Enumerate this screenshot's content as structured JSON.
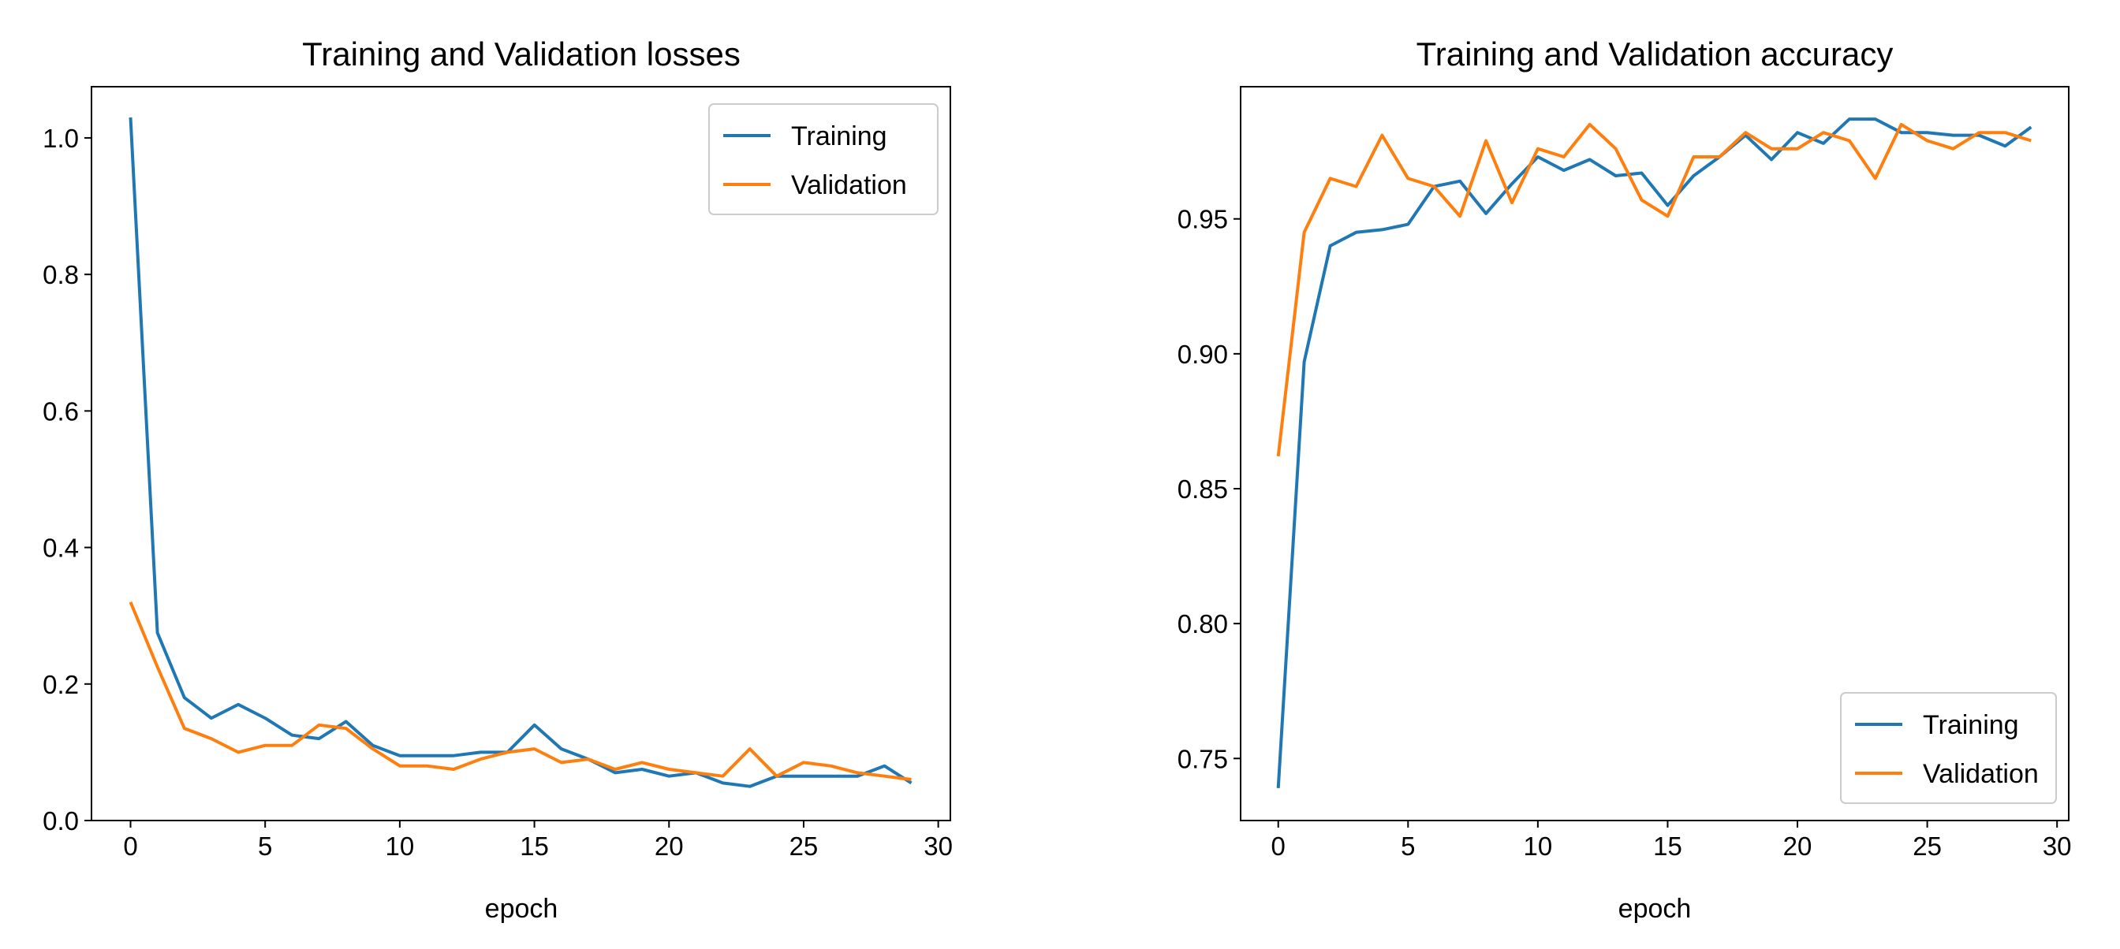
{
  "chart_data": [
    {
      "type": "line",
      "title": "Training and Validation losses",
      "xlabel": "epoch",
      "ylabel": "",
      "xlim": [
        -1.45,
        30.45
      ],
      "ylim": [
        0.0,
        1.075
      ],
      "xticks": [
        0,
        5,
        10,
        15,
        20,
        25,
        30
      ],
      "xtick_labels": [
        "0",
        "5",
        "10",
        "15",
        "20",
        "25",
        "30"
      ],
      "yticks": [
        0.0,
        0.2,
        0.4,
        0.6,
        0.8,
        1.0
      ],
      "ytick_labels": [
        "0.0",
        "0.2",
        "0.4",
        "0.6",
        "0.8",
        "1.0"
      ],
      "legend": "top-right",
      "grid": false,
      "x": [
        0,
        1,
        2,
        3,
        4,
        5,
        6,
        7,
        8,
        9,
        10,
        11,
        12,
        13,
        14,
        15,
        16,
        17,
        18,
        19,
        20,
        21,
        22,
        23,
        24,
        25,
        26,
        27,
        28,
        29
      ],
      "series": [
        {
          "name": "Training",
          "color": "#1f77b4",
          "values": [
            1.03,
            0.275,
            0.18,
            0.15,
            0.17,
            0.15,
            0.125,
            0.12,
            0.145,
            0.11,
            0.095,
            0.095,
            0.095,
            0.1,
            0.1,
            0.14,
            0.105,
            0.09,
            0.07,
            0.075,
            0.065,
            0.07,
            0.055,
            0.05,
            0.065,
            0.065,
            0.065,
            0.065,
            0.08,
            0.055
          ]
        },
        {
          "name": "Validation",
          "color": "#ff7f0e",
          "values": [
            0.32,
            0.225,
            0.135,
            0.12,
            0.1,
            0.11,
            0.11,
            0.14,
            0.135,
            0.105,
            0.08,
            0.08,
            0.075,
            0.09,
            0.1,
            0.105,
            0.085,
            0.09,
            0.075,
            0.085,
            0.075,
            0.07,
            0.065,
            0.105,
            0.065,
            0.085,
            0.08,
            0.07,
            0.065,
            0.06
          ]
        }
      ]
    },
    {
      "type": "line",
      "title": "Training and Validation accuracy",
      "xlabel": "epoch",
      "ylabel": "",
      "xlim": [
        -1.45,
        30.45
      ],
      "ylim": [
        0.727,
        0.999
      ],
      "xticks": [
        0,
        5,
        10,
        15,
        20,
        25,
        30
      ],
      "xtick_labels": [
        "0",
        "5",
        "10",
        "15",
        "20",
        "25",
        "30"
      ],
      "yticks": [
        0.75,
        0.8,
        0.85,
        0.9,
        0.95
      ],
      "ytick_labels": [
        "0.75",
        "0.80",
        "0.85",
        "0.90",
        "0.95"
      ],
      "legend": "bottom-right",
      "grid": false,
      "x": [
        0,
        1,
        2,
        3,
        4,
        5,
        6,
        7,
        8,
        9,
        10,
        11,
        12,
        13,
        14,
        15,
        16,
        17,
        18,
        19,
        20,
        21,
        22,
        23,
        24,
        25,
        26,
        27,
        28,
        29
      ],
      "series": [
        {
          "name": "Training",
          "color": "#1f77b4",
          "values": [
            0.739,
            0.897,
            0.94,
            0.945,
            0.946,
            0.948,
            0.962,
            0.964,
            0.952,
            0.963,
            0.973,
            0.968,
            0.972,
            0.966,
            0.967,
            0.955,
            0.966,
            0.973,
            0.981,
            0.972,
            0.982,
            0.978,
            0.987,
            0.987,
            0.982,
            0.982,
            0.981,
            0.981,
            0.977,
            0.984
          ]
        },
        {
          "name": "Validation",
          "color": "#ff7f0e",
          "values": [
            0.862,
            0.945,
            0.965,
            0.962,
            0.981,
            0.965,
            0.962,
            0.951,
            0.979,
            0.956,
            0.976,
            0.973,
            0.985,
            0.976,
            0.957,
            0.951,
            0.973,
            0.973,
            0.982,
            0.976,
            0.976,
            0.982,
            0.979,
            0.965,
            0.985,
            0.979,
            0.976,
            0.982,
            0.982,
            0.979
          ]
        }
      ]
    }
  ]
}
